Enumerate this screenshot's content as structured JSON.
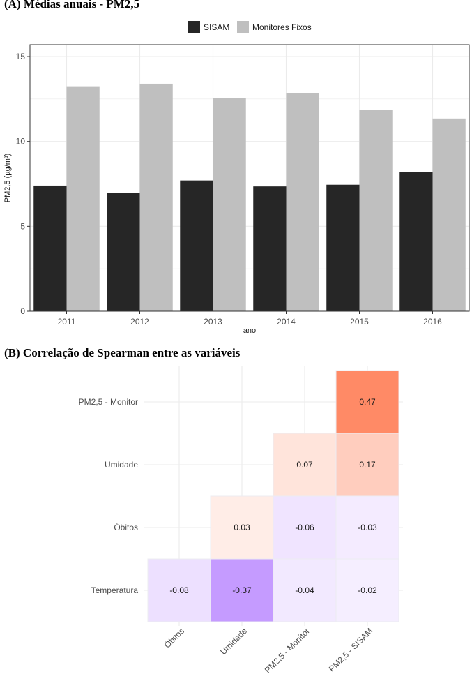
{
  "panel_a_title": "(A) Médias anuais - PM2,5",
  "panel_b_title": "(B) Correlação de Spearman entre as variáveis",
  "colors": {
    "sisam": "#262626",
    "monitores": "#bfbfbf",
    "pos": "#ff8a66",
    "neg": "#b783ff",
    "grid": "#ebebeb",
    "border": "#333333"
  },
  "chart_data": [
    {
      "type": "bar",
      "title": "(A) Médias anuais - PM2,5",
      "xlabel": "ano",
      "ylabel": "PM2,5 (µg/m³)",
      "ylim": [
        0,
        15.7
      ],
      "yticks": [
        0,
        5,
        10,
        15
      ],
      "categories": [
        "2011",
        "2012",
        "2013",
        "2014",
        "2015",
        "2016"
      ],
      "legend_position": "top",
      "series": [
        {
          "name": "SISAM",
          "color": "#262626",
          "values": [
            7.4,
            6.95,
            7.7,
            7.35,
            7.45,
            8.2
          ]
        },
        {
          "name": "Monitores Fixos",
          "color": "#bfbfbf",
          "values": [
            13.25,
            13.4,
            12.55,
            12.85,
            11.85,
            11.35
          ]
        }
      ]
    },
    {
      "type": "heatmap",
      "title": "(B) Correlação de Spearman entre as variáveis",
      "x_labels": [
        "Óbitos",
        "Umidade",
        "PM2,5 - Monitor",
        "PM2,5 - SISAM"
      ],
      "y_labels": [
        "PM2,5 - Monitor",
        "Umidade",
        "Óbitos",
        "Temperatura"
      ],
      "cells": [
        {
          "x": "PM2,5 - SISAM",
          "y": "PM2,5 - Monitor",
          "value": 0.47,
          "label": "0.47"
        },
        {
          "x": "PM2,5 - Monitor",
          "y": "Umidade",
          "value": 0.07,
          "label": "0.07"
        },
        {
          "x": "PM2,5 - SISAM",
          "y": "Umidade",
          "value": 0.17,
          "label": "0.17"
        },
        {
          "x": "Umidade",
          "y": "Óbitos",
          "value": 0.03,
          "label": "0.03"
        },
        {
          "x": "PM2,5 - Monitor",
          "y": "Óbitos",
          "value": -0.06,
          "label": "-0.06"
        },
        {
          "x": "PM2,5 - SISAM",
          "y": "Óbitos",
          "value": -0.03,
          "label": "-0.03"
        },
        {
          "x": "Óbitos",
          "y": "Temperatura",
          "value": -0.08,
          "label": "-0.08"
        },
        {
          "x": "Umidade",
          "y": "Temperatura",
          "value": -0.37,
          "label": "-0.37"
        },
        {
          "x": "PM2,5 - Monitor",
          "y": "Temperatura",
          "value": -0.04,
          "label": "-0.04"
        },
        {
          "x": "PM2,5 - SISAM",
          "y": "Temperatura",
          "value": -0.02,
          "label": "-0.02"
        }
      ]
    }
  ]
}
